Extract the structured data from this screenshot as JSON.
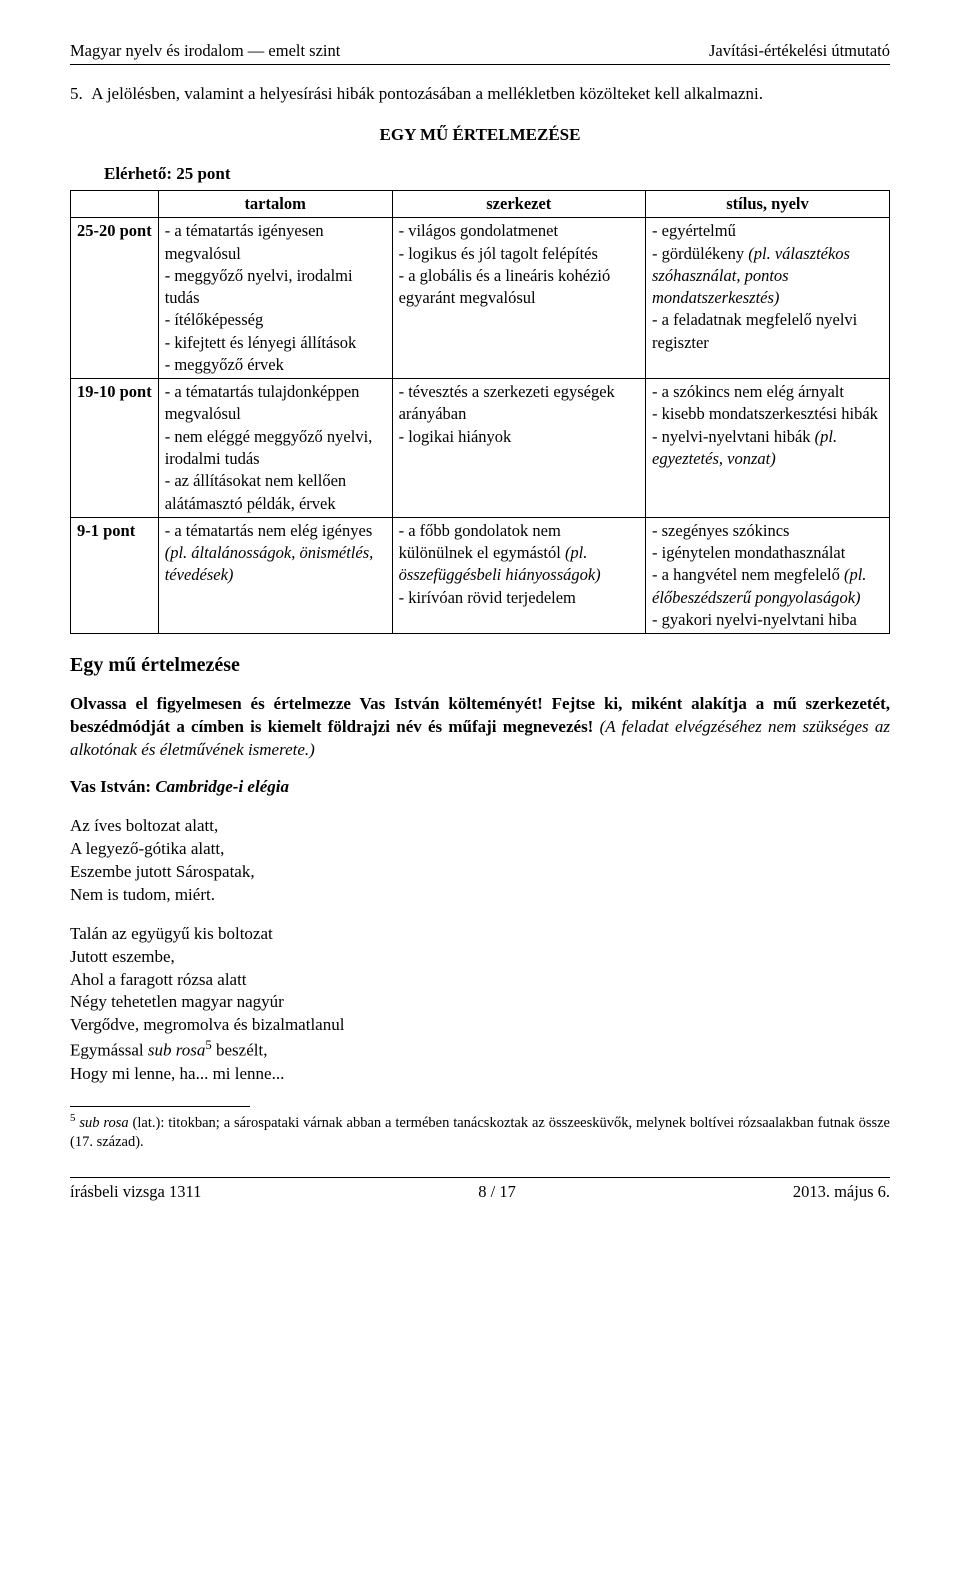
{
  "header": {
    "left": "Magyar nyelv és irodalom — emelt szint",
    "right": "Javítási-értékelési útmutató"
  },
  "item5": "5.  A jelölésben, valamint a helyesírási hibák pontozásában a mellékletben közölteket kell alkalmazni.",
  "section_title": "EGY MŰ ÉRTELMEZÉSE",
  "reachable": "Elérhető: 25 pont",
  "rubric": {
    "headers": [
      "",
      "tartalom",
      "szerkezet",
      "stílus, nyelv"
    ],
    "rows": [
      {
        "band": "25-20 pont",
        "c1": "- a tématartás igényesen megvalósul\n- meggyőző nyelvi, irodalmi tudás\n- ítélőképesség\n- kifejtett és lényegi állítások\n- meggyőző érvek",
        "c2": "- világos gondolatmenet\n- logikus és jól tagolt felépítés\n- a globális és a lineáris kohézió egyaránt megvalósul",
        "c3_html": "- egyértelmű<br>- gördülékeny <span class=\"italic\">(pl. választékos szóhasználat, pontos mondatszerkesztés)</span><br>- a feladatnak megfelelő nyelvi regiszter"
      },
      {
        "band": "19-10 pont",
        "c1": "- a tématartás tulajdonképpen megvalósul\n- nem eléggé meggyőző nyelvi, irodalmi tudás\n- az állításokat nem kellően alátámasztó példák, érvek",
        "c2": "- tévesztés a szerkezeti egységek arányában\n- logikai hiányok",
        "c3_html": "- a szókincs nem elég árnyalt<br>- kisebb mondatszerkesztési hibák<br>- nyelvi-nyelvtani hibák <span class=\"italic\">(pl. egyeztetés, vonzat)</span>"
      },
      {
        "band": "9-1 pont",
        "c1_html": "- a tématartás nem elég igényes <span class=\"italic\">(pl. általánosságok, önismétlés, tévedések)</span>",
        "c2_html": "- a főbb gondolatok nem különülnek el egymástól <span class=\"italic\">(pl. összefüggésbeli hiányosságok)</span><br>- kirívóan rövid terjedelem",
        "c3_html": "- szegényes szókincs<br>- igénytelen mondathasználat<br>- a hangvétel nem megfelelő <span class=\"italic\">(pl. élőbeszédszerű pongyolaságok)</span><br>- gyakori nyelvi-nyelvtani hiba"
      }
    ]
  },
  "sub_title": "Egy mű értelmezése",
  "task_html": "<span class=\"bold\">Olvassa el figyelmesen és értelmezze Vas István költeményét! Fejtse ki, miként alakítja a mű szerkezetét, beszédmódját a címben is kiemelt földrajzi név és műfaji megnevezés!</span> <span class=\"italic\">(A feladat elvégzéséhez nem szükséges az alkotónak és életművének ismerete.)</span>",
  "poem_title_html": "<span class=\"bold\">Vas István:</span> <span class=\"bold italic\">Cambridge-i elégia</span>",
  "stanza1": "Az íves boltozat alatt,\nA legyező-gótika alatt,\nEszembe jutott Sárospatak,\nNem is tudom, miért.",
  "stanza2_html": "Talán az együgyű kis boltozat<br>Jutott eszembe,<br>Ahol a faragott rózsa alatt<br>Négy tehetetlen magyar nagyúr<br>Vergődve, megromolva és bizalmatlanul<br>Egymással <span class=\"italic\">sub rosa</span><sup>5</sup> beszélt,<br>Hogy mi lenne, ha... mi lenne...",
  "footnote_html": "<sup>5</sup> <span class=\"italic\">sub rosa</span> (lat.): titokban; a sárospataki várnak abban a termében tanácskoztak az összeesküvők, melynek boltívei rózsaalakban futnak össze (17. század).",
  "footer": {
    "left": "írásbeli vizsga 1311",
    "center": "8 / 17",
    "right": "2013. május 6."
  }
}
